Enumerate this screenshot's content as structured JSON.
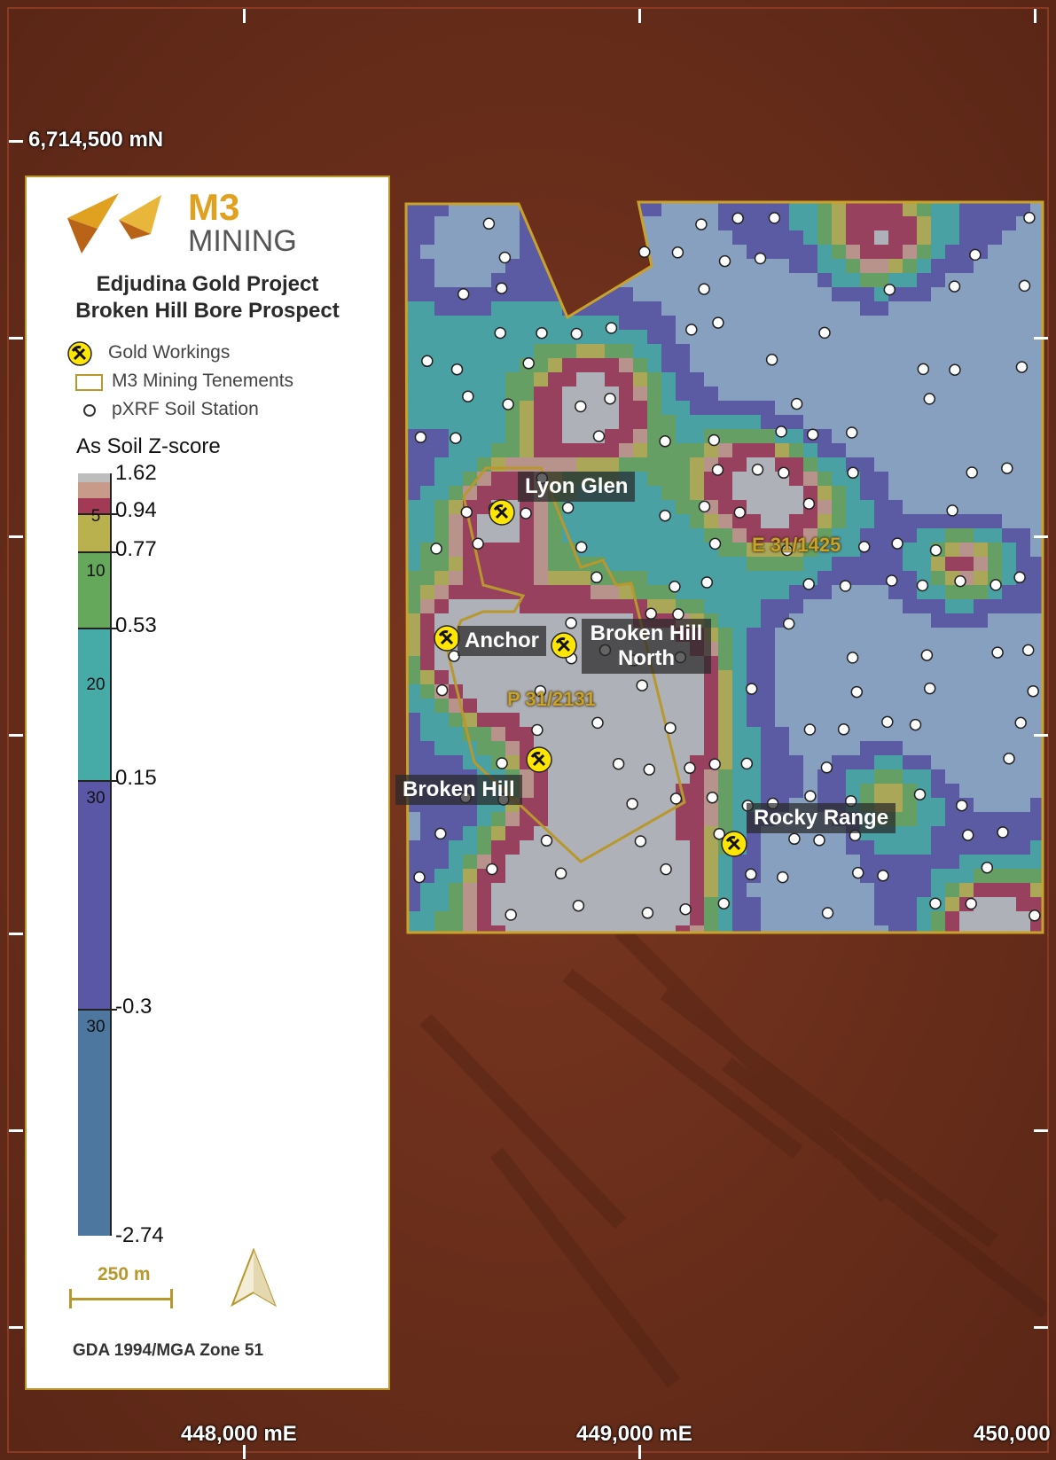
{
  "grid_labels": {
    "northing": "6,714,500 mN",
    "eastings": [
      "448,000 mE",
      "449,000 mE",
      "450,000"
    ]
  },
  "legend": {
    "company_line1": "M3",
    "company_line2": "MINING",
    "title_line1": "Edjudina Gold Project",
    "title_line2": "Broken Hill Bore Prospect",
    "items": [
      {
        "icon": "pick-hammer-icon",
        "label": "Gold Workings"
      },
      {
        "icon": "tenement-outline-icon",
        "label": "M3 Mining Tenements"
      },
      {
        "icon": "circle-icon",
        "label": "pXRF Soil Station"
      }
    ],
    "colorbar_title": "As Soil Z-score",
    "colorbar": {
      "breaks": [
        "1.62",
        "0.94",
        "0.77",
        "0.53",
        "0.15",
        "-0.3",
        "-2.74"
      ],
      "classes": [
        "5",
        "10",
        "20",
        "30",
        "30"
      ],
      "colors": [
        "#bdbdbd",
        "#a23a55",
        "#c89a8a",
        "#b9b14e",
        "#66a85b",
        "#46aaa6",
        "#5a58a6",
        "#4e77a0"
      ]
    },
    "scale_label": "250 m",
    "crs": "GDA 1994/MGA Zone 51"
  },
  "prospect_labels": [
    "Lyon Glen",
    "Anchor",
    "Broken Hill North",
    "Broken Hill",
    "Rocky Range"
  ],
  "tenement_labels": [
    "E 31/1425",
    "P 31/2131"
  ],
  "colors": {
    "gold": "#c8a22a",
    "marker": "#ffe600",
    "land": "#6b2e1a"
  }
}
